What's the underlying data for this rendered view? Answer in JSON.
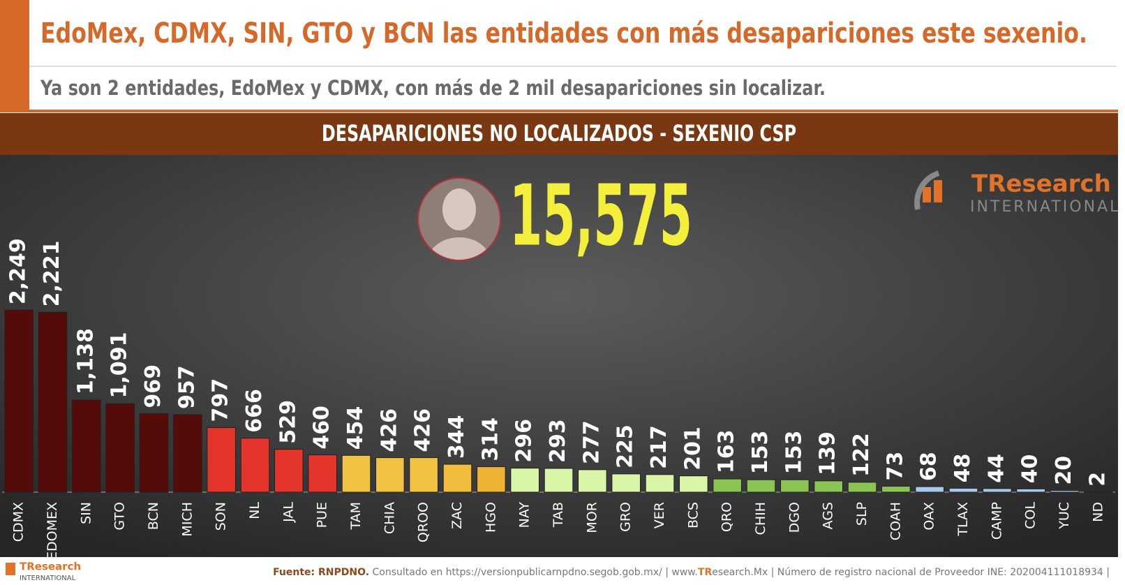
{
  "header": {
    "title": "EdoMex, CDMX, SIN, GTO y BCN las entidades con más desapariciones este sexenio.",
    "subtitle": "Ya son 2 entidades, EdoMex y CDMX, con más de 2 mil desapariciones sin localizar."
  },
  "logo": {
    "name": "TResearch",
    "tagline": "INTERNATIONAL"
  },
  "footer": {
    "logo_name": "TResearch",
    "logo_tagline": "INTERNATIONAL",
    "source": "Fuente: RNPDNO.",
    "consulted": "Consultado en https://versionpublicarnpdno.segob.gob.mx/ | www.",
    "site_brand": "TR",
    "site_rest": "esearch.Mx | Número de registro nacional de Proveedor INE: 202004111018934 |"
  },
  "chart_data": {
    "type": "bar",
    "title": "DESAPARICIONES NO LOCALIZADOS - SEXENIO CSP",
    "total": {
      "value": 15575,
      "label": "15,575"
    },
    "categories": [
      "CDMX",
      "EDOMEX",
      "SIN",
      "GTO",
      "BCN",
      "MICH",
      "SON",
      "NL",
      "JAL",
      "PUE",
      "TAM",
      "CHIA",
      "QROO",
      "ZAC",
      "HGO",
      "NAY",
      "TAB",
      "MOR",
      "GRO",
      "VER",
      "BCS",
      "QRO",
      "CHIH",
      "DGO",
      "AGS",
      "SLP",
      "COAH",
      "OAX",
      "TLAX",
      "CAMP",
      "COL",
      "YUC",
      "ND"
    ],
    "values": [
      2249,
      2221,
      1138,
      1091,
      969,
      957,
      797,
      666,
      529,
      460,
      454,
      426,
      426,
      344,
      314,
      296,
      293,
      277,
      225,
      217,
      201,
      163,
      153,
      153,
      139,
      122,
      73,
      68,
      48,
      44,
      40,
      20,
      2
    ],
    "value_labels": [
      "2,249",
      "2,221",
      "1,138",
      "1,091",
      "969",
      "957",
      "797",
      "666",
      "529",
      "460",
      "454",
      "426",
      "426",
      "344",
      "314",
      "296",
      "293",
      "277",
      "225",
      "217",
      "201",
      "163",
      "153",
      "153",
      "139",
      "122",
      "73",
      "68",
      "48",
      "44",
      "40",
      "20",
      "2"
    ],
    "colors": [
      "#560b0b",
      "#560b0b",
      "#560b0b",
      "#560b0b",
      "#560b0b",
      "#560b0b",
      "#e5342a",
      "#e5342a",
      "#e5342a",
      "#e5342a",
      "#f2c343",
      "#f2c343",
      "#f2c343",
      "#f2bc3c",
      "#f0b232",
      "#d8f5a8",
      "#d8f5a8",
      "#d8f5a8",
      "#d8f5a8",
      "#d8f5a8",
      "#d8f5a8",
      "#8bc452",
      "#8bc452",
      "#8bc452",
      "#8bc452",
      "#8bc452",
      "#8bc452",
      "#a9c9ea",
      "#a9c9ea",
      "#a9c9ea",
      "#a9c9ea",
      "#a9c9ea",
      "#a9c9ea"
    ],
    "ylim": [
      0,
      2500
    ]
  }
}
